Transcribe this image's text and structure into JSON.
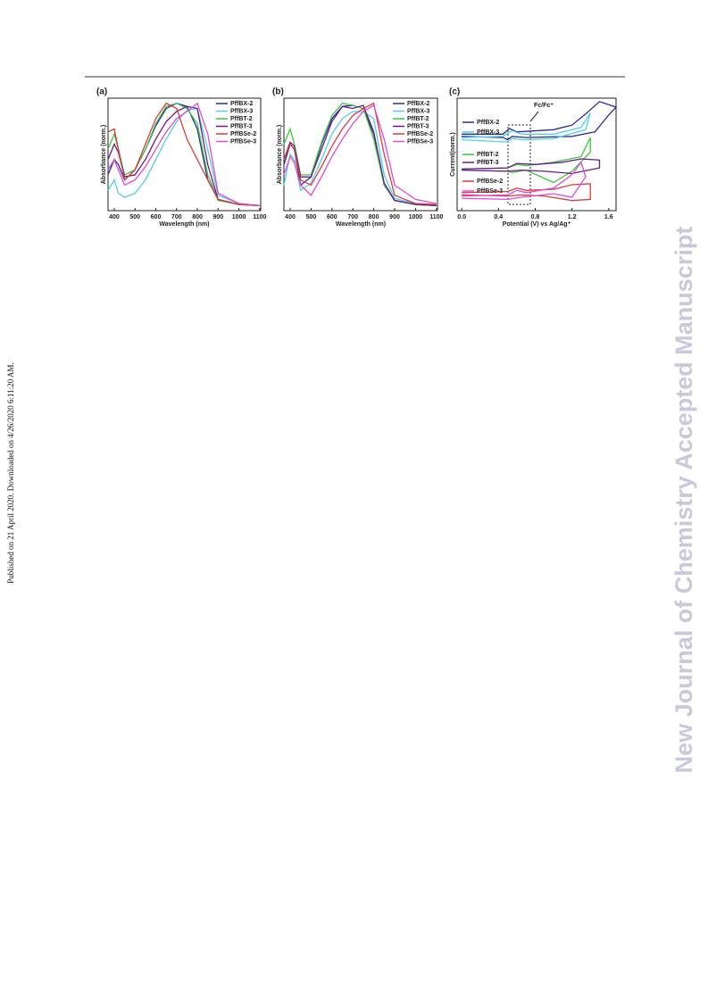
{
  "side_note": "Published on 21 April 2020. Downloaded on 4/26/2020 6:11:20 AM.",
  "watermark": "New Journal of Chemistry Accepted Manuscript",
  "chart_data": [
    {
      "type": "line",
      "label": "(a)",
      "x_label": "Wavelength (nm)",
      "y_label": "Absorbance (norm.)",
      "x": [
        370,
        400,
        420,
        450,
        500,
        550,
        600,
        650,
        700,
        750,
        800,
        850,
        900,
        1000,
        1100
      ],
      "xlim": [
        370,
        1105
      ],
      "xticks": [
        400,
        500,
        600,
        700,
        800,
        900,
        1000,
        1100
      ],
      "ylim": [
        -0.05,
        1.05
      ],
      "series": [
        {
          "name": "PffBX-2",
          "color": "#2a2aa0",
          "values": [
            0.3,
            0.45,
            0.4,
            0.25,
            0.35,
            0.55,
            0.78,
            0.95,
            1.0,
            0.97,
            0.75,
            0.25,
            0.06,
            0.01,
            0.0
          ]
        },
        {
          "name": "PffBX-3",
          "color": "#4fd0e8",
          "values": [
            0.15,
            0.25,
            0.12,
            0.08,
            0.12,
            0.25,
            0.45,
            0.65,
            0.82,
            0.93,
            0.95,
            0.55,
            0.1,
            0.02,
            0.0
          ]
        },
        {
          "name": "PffBT-2",
          "color": "#3dc93d",
          "values": [
            0.55,
            0.7,
            0.55,
            0.3,
            0.35,
            0.55,
            0.8,
            0.97,
            1.0,
            0.95,
            0.8,
            0.3,
            0.05,
            0.01,
            0.0
          ]
        },
        {
          "name": "PffBT-3",
          "color": "#6a1a8a",
          "values": [
            0.45,
            0.6,
            0.52,
            0.28,
            0.3,
            0.45,
            0.65,
            0.82,
            0.92,
            0.97,
            0.95,
            0.4,
            0.06,
            0.01,
            0.0
          ]
        },
        {
          "name": "PffBSe-2",
          "color": "#e03a3a",
          "values": [
            0.72,
            0.75,
            0.55,
            0.25,
            0.35,
            0.6,
            0.85,
            1.0,
            0.95,
            0.65,
            0.45,
            0.25,
            0.06,
            0.01,
            0.0
          ]
        },
        {
          "name": "PffBSe-3",
          "color": "#e04ad8",
          "values": [
            0.35,
            0.45,
            0.35,
            0.2,
            0.25,
            0.38,
            0.55,
            0.72,
            0.85,
            0.92,
            1.0,
            0.7,
            0.12,
            0.02,
            0.0
          ]
        }
      ]
    },
    {
      "type": "line",
      "label": "(b)",
      "x_label": "Wavelength (nm)",
      "y_label": "Absorbance (norm.)",
      "x": [
        370,
        400,
        420,
        450,
        500,
        550,
        600,
        650,
        700,
        750,
        800,
        850,
        900,
        1000,
        1100
      ],
      "xlim": [
        370,
        1105
      ],
      "xticks": [
        400,
        500,
        600,
        700,
        800,
        900,
        1000,
        1100
      ],
      "ylim": [
        -0.05,
        1.05
      ],
      "series": [
        {
          "name": "PffBX-2",
          "color": "#2a2aa0",
          "values": [
            0.4,
            0.6,
            0.55,
            0.2,
            0.28,
            0.6,
            0.85,
            0.97,
            0.98,
            0.95,
            0.7,
            0.2,
            0.05,
            0.01,
            0.0
          ]
        },
        {
          "name": "PffBX-3",
          "color": "#4fd0e8",
          "values": [
            0.2,
            0.5,
            0.45,
            0.15,
            0.22,
            0.45,
            0.7,
            0.85,
            0.92,
            0.92,
            0.85,
            0.3,
            0.07,
            0.02,
            0.0
          ]
        },
        {
          "name": "PffBT-2",
          "color": "#3dc93d",
          "values": [
            0.6,
            0.75,
            0.6,
            0.3,
            0.3,
            0.62,
            0.88,
            1.0,
            0.98,
            0.95,
            0.65,
            0.2,
            0.05,
            0.01,
            0.0
          ]
        },
        {
          "name": "PffBT-3",
          "color": "#6a1a8a",
          "values": [
            0.45,
            0.62,
            0.58,
            0.28,
            0.28,
            0.55,
            0.82,
            0.97,
            0.95,
            0.98,
            0.72,
            0.22,
            0.05,
            0.01,
            0.0
          ]
        },
        {
          "name": "PffBSe-2",
          "color": "#e03a3a",
          "values": [
            0.45,
            0.6,
            0.55,
            0.25,
            0.2,
            0.38,
            0.58,
            0.75,
            0.88,
            0.95,
            1.0,
            0.5,
            0.1,
            0.02,
            0.01
          ]
        },
        {
          "name": "PffBSe-3",
          "color": "#e04ad8",
          "values": [
            0.3,
            0.48,
            0.42,
            0.2,
            0.1,
            0.28,
            0.48,
            0.65,
            0.8,
            0.92,
            0.98,
            0.65,
            0.2,
            0.06,
            0.02
          ]
        }
      ]
    },
    {
      "type": "cv",
      "label": "(c)",
      "x_label": "Potential (V) vs Ag/Ag⁺",
      "y_label": "Current(norm.)",
      "annotation": "Fc/Fc⁺",
      "xlim": [
        -0.05,
        1.68
      ],
      "xticks": [
        {
          "value": 0,
          "label": "0.0"
        },
        0.4,
        0.8,
        1.2,
        1.6
      ],
      "ylim": [
        0,
        10
      ],
      "series": [
        {
          "name": "PffBX-2",
          "color": "#2a2aa0",
          "x": [
            0,
            0.45,
            0.52,
            0.6,
            1.0,
            1.2,
            1.35,
            1.5,
            1.68,
            1.6,
            1.45,
            1.2,
            0.7,
            0.55,
            0.5,
            0.45,
            0
          ],
          "values": [
            6.8,
            6.8,
            7.3,
            7.0,
            7.2,
            7.6,
            8.6,
            9.7,
            9.2,
            8.5,
            7.0,
            6.6,
            6.5,
            6.6,
            6.3,
            6.5,
            6.6
          ]
        },
        {
          "name": "PffBX-3",
          "color": "#4fd0e8",
          "x": [
            0,
            0.45,
            0.55,
            0.65,
            1.0,
            1.3,
            1.4,
            1.35,
            1.0,
            0.7,
            0.55,
            0.5,
            0
          ],
          "values": [
            6.5,
            6.6,
            7.1,
            6.8,
            6.8,
            7.4,
            8.7,
            7.2,
            6.4,
            6.3,
            6.4,
            6.1,
            6.3
          ]
        },
        {
          "name": "PffBT-2",
          "color": "#3dc93d",
          "x": [
            0,
            0.5,
            0.6,
            0.7,
            1.0,
            1.3,
            1.4,
            1.4,
            1.2,
            1.0,
            0.7,
            0.55,
            0.5,
            0
          ],
          "values": [
            3.7,
            3.8,
            4.1,
            4.0,
            4.3,
            4.8,
            6.5,
            5.2,
            3.5,
            2.5,
            3.6,
            3.4,
            3.5,
            3.6
          ]
        },
        {
          "name": "PffBT-3",
          "color": "#6a1a8a",
          "x": [
            0,
            0.5,
            0.6,
            0.8,
            1.1,
            1.3,
            1.5,
            1.5,
            1.2,
            0.9,
            0.65,
            0.5,
            0
          ],
          "values": [
            3.7,
            3.8,
            4.2,
            4.1,
            4.3,
            4.6,
            4.5,
            3.8,
            3.3,
            3.5,
            3.6,
            3.5,
            3.6
          ]
        },
        {
          "name": "PffBSe-2",
          "color": "#e03a3a",
          "x": [
            0,
            0.5,
            0.6,
            0.7,
            1.0,
            1.2,
            1.4,
            1.4,
            1.2,
            0.9,
            0.65,
            0.5,
            0
          ],
          "values": [
            1.6,
            1.7,
            2.0,
            1.8,
            1.9,
            2.3,
            2.4,
            1.0,
            0.9,
            1.3,
            1.4,
            1.3,
            1.4
          ]
        },
        {
          "name": "PffBSe-3",
          "color": "#e04ad8",
          "x": [
            0,
            0.5,
            0.6,
            0.7,
            1.0,
            1.2,
            1.3,
            1.35,
            1.2,
            1.0,
            0.65,
            0.5,
            0
          ],
          "values": [
            1.3,
            1.4,
            1.8,
            1.6,
            2.0,
            3.2,
            4.3,
            3.0,
            1.2,
            1.5,
            1.2,
            1.0,
            1.1
          ]
        }
      ]
    }
  ]
}
